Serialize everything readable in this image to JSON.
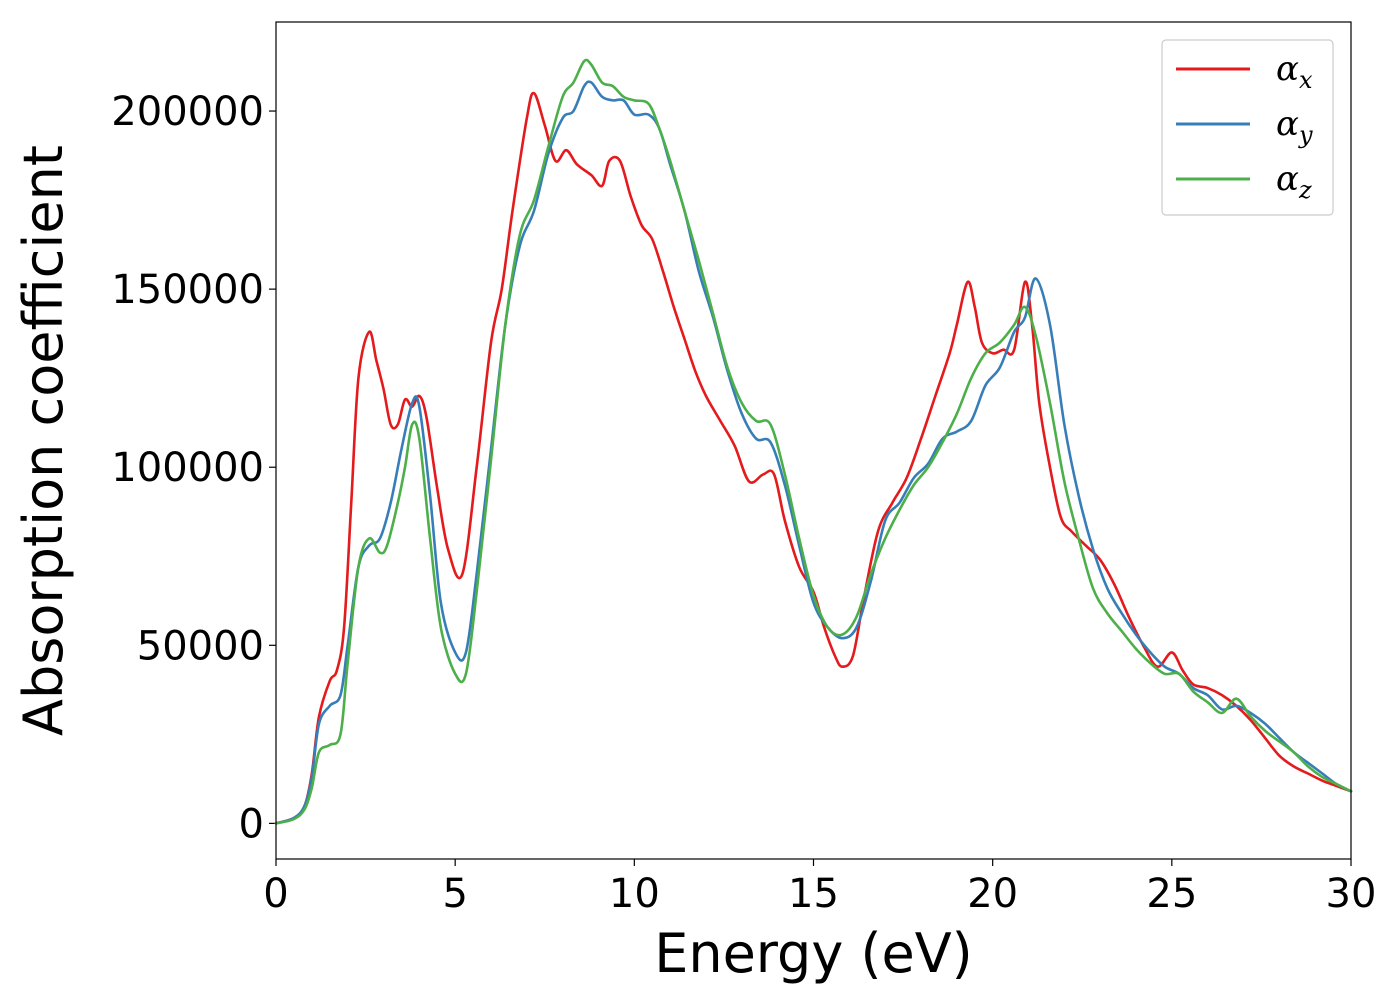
{
  "chart_data": {
    "type": "line",
    "xlabel": "Energy (eV)",
    "ylabel": "Absorption coefficient",
    "xlim": [
      0,
      30
    ],
    "ylim": [
      -10000,
      225000
    ],
    "xticks": [
      0,
      5,
      10,
      15,
      20,
      25,
      30
    ],
    "yticks": [
      0,
      50000,
      100000,
      150000,
      200000
    ],
    "grid": false,
    "legend_position": "top-right",
    "series": [
      {
        "name": "αx",
        "legend_base": "α",
        "legend_sub": "x",
        "color": "#e41a1c",
        "x": [
          0,
          0.5,
          0.8,
          1.0,
          1.2,
          1.5,
          1.7,
          1.9,
          2.1,
          2.3,
          2.6,
          2.8,
          3.0,
          3.2,
          3.4,
          3.6,
          3.8,
          4.0,
          4.2,
          4.5,
          4.8,
          5.2,
          5.6,
          6.0,
          6.3,
          6.6,
          7.0,
          7.2,
          7.5,
          7.8,
          8.1,
          8.4,
          8.8,
          9.1,
          9.3,
          9.6,
          9.9,
          10.2,
          10.5,
          10.8,
          11.1,
          11.4,
          11.7,
          12.0,
          12.4,
          12.8,
          13.2,
          13.6,
          13.9,
          14.2,
          14.6,
          15.0,
          15.3,
          15.6,
          15.8,
          16.1,
          16.4,
          16.8,
          17.2,
          17.6,
          18.0,
          18.4,
          18.8,
          19.0,
          19.3,
          19.5,
          19.7,
          20.0,
          20.3,
          20.6,
          20.9,
          21.1,
          21.3,
          21.6,
          21.9,
          22.2,
          22.6,
          23.0,
          23.4,
          23.8,
          24.2,
          24.6,
          25.0,
          25.3,
          25.6,
          26.0,
          26.4,
          26.8,
          27.2,
          27.6,
          28.0,
          28.4,
          28.8,
          29.2,
          29.6,
          30.0
        ],
        "y": [
          0,
          1500,
          5000,
          14000,
          30000,
          40000,
          43000,
          55000,
          90000,
          125000,
          138000,
          130000,
          122000,
          112000,
          112000,
          119000,
          117000,
          120000,
          114000,
          94000,
          77000,
          70000,
          100000,
          135000,
          150000,
          172000,
          198000,
          205000,
          196000,
          186000,
          189000,
          185000,
          182000,
          179000,
          186000,
          186000,
          176000,
          168000,
          164000,
          155000,
          145000,
          136000,
          127000,
          120000,
          113000,
          106000,
          96000,
          98000,
          98000,
          85000,
          72000,
          65000,
          55000,
          47000,
          44000,
          47000,
          63000,
          82000,
          90000,
          97000,
          108000,
          120000,
          132000,
          140000,
          152000,
          145000,
          135000,
          132000,
          133000,
          133000,
          152000,
          140000,
          118000,
          100000,
          86000,
          82000,
          78000,
          74000,
          67000,
          58000,
          50000,
          44000,
          48000,
          43000,
          39000,
          38000,
          36000,
          33000,
          29000,
          24000,
          19000,
          16000,
          14000,
          12000,
          10500,
          9000
        ]
      },
      {
        "name": "αy",
        "legend_base": "α",
        "legend_sub": "y",
        "color": "#377eb8",
        "x": [
          0,
          0.5,
          0.8,
          1.0,
          1.2,
          1.5,
          1.8,
          2.0,
          2.3,
          2.6,
          2.9,
          3.2,
          3.5,
          3.8,
          4.0,
          4.3,
          4.6,
          5.0,
          5.3,
          5.6,
          6.0,
          6.4,
          6.8,
          7.2,
          7.6,
          8.0,
          8.3,
          8.6,
          8.8,
          9.1,
          9.4,
          9.7,
          10.0,
          10.4,
          10.7,
          11.0,
          11.4,
          11.8,
          12.2,
          12.6,
          13.0,
          13.4,
          13.8,
          14.2,
          14.6,
          15.0,
          15.4,
          15.8,
          16.2,
          16.6,
          17.0,
          17.4,
          17.8,
          18.2,
          18.6,
          19.0,
          19.4,
          19.8,
          20.2,
          20.6,
          20.9,
          21.2,
          21.6,
          22.0,
          22.4,
          22.8,
          23.2,
          23.6,
          24.0,
          24.4,
          24.8,
          25.2,
          25.6,
          26.0,
          26.4,
          26.8,
          27.2,
          27.6,
          28.0,
          28.4,
          28.8,
          29.2,
          29.6,
          30.0
        ],
        "y": [
          0,
          1500,
          5000,
          13000,
          28000,
          33000,
          36000,
          50000,
          72000,
          78000,
          80000,
          90000,
          105000,
          118000,
          117000,
          92000,
          62000,
          48000,
          48000,
          70000,
          105000,
          140000,
          162000,
          172000,
          188000,
          198000,
          200000,
          207000,
          208000,
          204000,
          203000,
          203000,
          199000,
          199000,
          195000,
          185000,
          172000,
          155000,
          142000,
          127000,
          115000,
          108000,
          107000,
          95000,
          78000,
          62000,
          55000,
          52000,
          55000,
          68000,
          85000,
          90000,
          97000,
          101000,
          108000,
          110000,
          113000,
          123000,
          128000,
          138000,
          142000,
          153000,
          140000,
          112000,
          92000,
          77000,
          66000,
          59000,
          53000,
          48000,
          44000,
          42000,
          38000,
          36000,
          32000,
          33000,
          31000,
          28000,
          24000,
          20000,
          17000,
          14000,
          11000,
          9000
        ]
      },
      {
        "name": "αz",
        "legend_base": "α",
        "legend_sub": "z",
        "color": "#4daf4a",
        "x": [
          0,
          0.5,
          0.8,
          1.0,
          1.2,
          1.5,
          1.8,
          2.0,
          2.3,
          2.6,
          2.9,
          3.1,
          3.4,
          3.6,
          3.8,
          4.0,
          4.3,
          4.6,
          5.0,
          5.3,
          5.6,
          6.0,
          6.4,
          6.8,
          7.2,
          7.6,
          8.0,
          8.3,
          8.6,
          8.8,
          9.1,
          9.4,
          9.7,
          10.0,
          10.4,
          10.7,
          11.0,
          11.4,
          11.8,
          12.2,
          12.6,
          13.0,
          13.4,
          13.8,
          14.2,
          14.6,
          15.0,
          15.4,
          15.8,
          16.2,
          16.6,
          17.0,
          17.4,
          17.8,
          18.2,
          18.6,
          19.0,
          19.4,
          19.8,
          20.2,
          20.6,
          20.9,
          21.2,
          21.6,
          22.0,
          22.4,
          22.8,
          23.2,
          23.6,
          24.0,
          24.4,
          24.8,
          25.2,
          25.6,
          26.0,
          26.4,
          26.8,
          27.2,
          27.6,
          28.0,
          28.4,
          28.8,
          29.2,
          29.6,
          30.0
        ],
        "y": [
          0,
          1200,
          4000,
          10000,
          20000,
          22000,
          25000,
          45000,
          72000,
          80000,
          76000,
          78000,
          90000,
          100000,
          112000,
          108000,
          80000,
          55000,
          42000,
          42000,
          65000,
          102000,
          140000,
          165000,
          175000,
          190000,
          204000,
          208000,
          214000,
          213000,
          208000,
          207000,
          204000,
          203000,
          202000,
          195000,
          186000,
          172000,
          158000,
          143000,
          128000,
          118000,
          113000,
          112000,
          98000,
          80000,
          64000,
          55000,
          53000,
          58000,
          70000,
          80000,
          88000,
          95000,
          100000,
          107000,
          115000,
          125000,
          132000,
          135000,
          140000,
          145000,
          137000,
          118000,
          96000,
          80000,
          66000,
          59000,
          54000,
          49000,
          45000,
          42000,
          42000,
          37000,
          34000,
          31000,
          35000,
          30000,
          26000,
          23000,
          20000,
          16000,
          13000,
          11000,
          9000
        ]
      }
    ]
  }
}
